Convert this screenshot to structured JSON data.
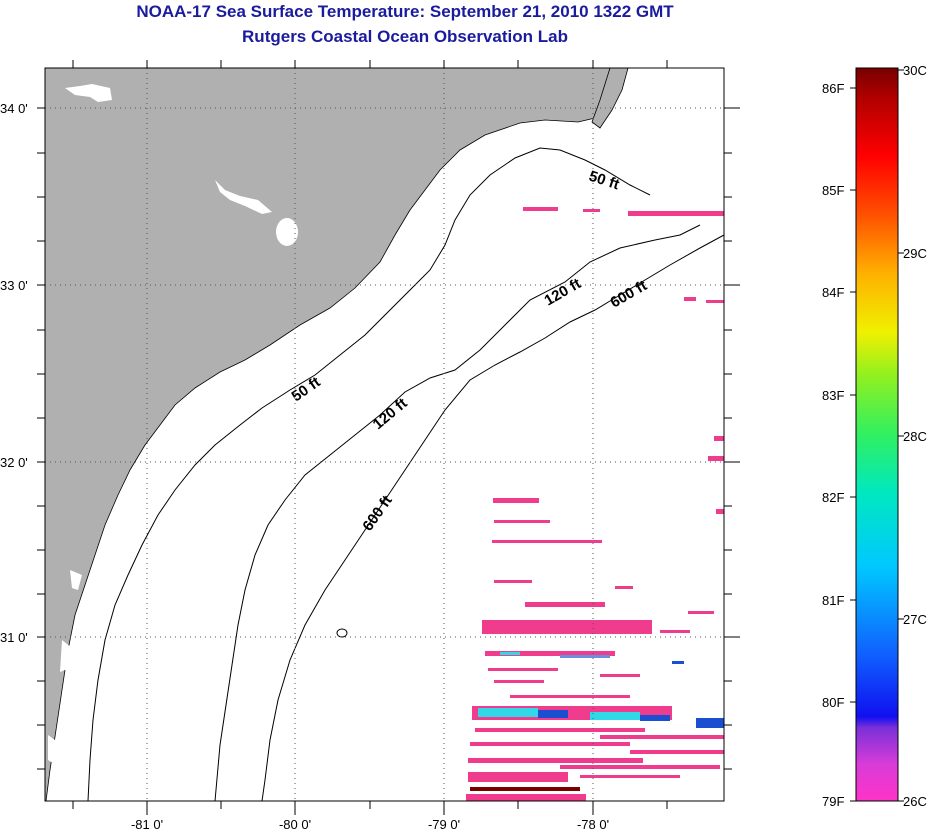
{
  "title": "NOAA-17 Sea Surface Temperature:  September 21, 2010 1322 GMT",
  "subtitle": "Rutgers Coastal Ocean Observation Lab",
  "lat_labels": [
    "34 0'",
    "33 0'",
    "32 0'",
    "31 0'"
  ],
  "lon_labels": [
    "-81 0'",
    "-80 0'",
    "-79 0'",
    "-78 0'"
  ],
  "contour_labels": {
    "c50_north": "50 ft",
    "c50_south": "50 ft",
    "c120_north": "120 ft",
    "c120_south": "120 ft",
    "c600_north": "600 ft",
    "c600_south": "600 ft"
  },
  "colorbar": {
    "fahrenheit_labels": [
      "86F",
      "85F",
      "84F",
      "83F",
      "82F",
      "81F",
      "80F",
      "79F"
    ],
    "celsius_labels": [
      "30C",
      "29C",
      "28C",
      "27C",
      "26C"
    ]
  },
  "colors": {
    "title": "#1b1b9e",
    "land": "#b0b0b0",
    "sst_pink": "#f03c8c",
    "sst_cyan": "#30d8e8",
    "sst_blue": "#1a4fd0",
    "sst_darkred": "#7a0000"
  }
}
